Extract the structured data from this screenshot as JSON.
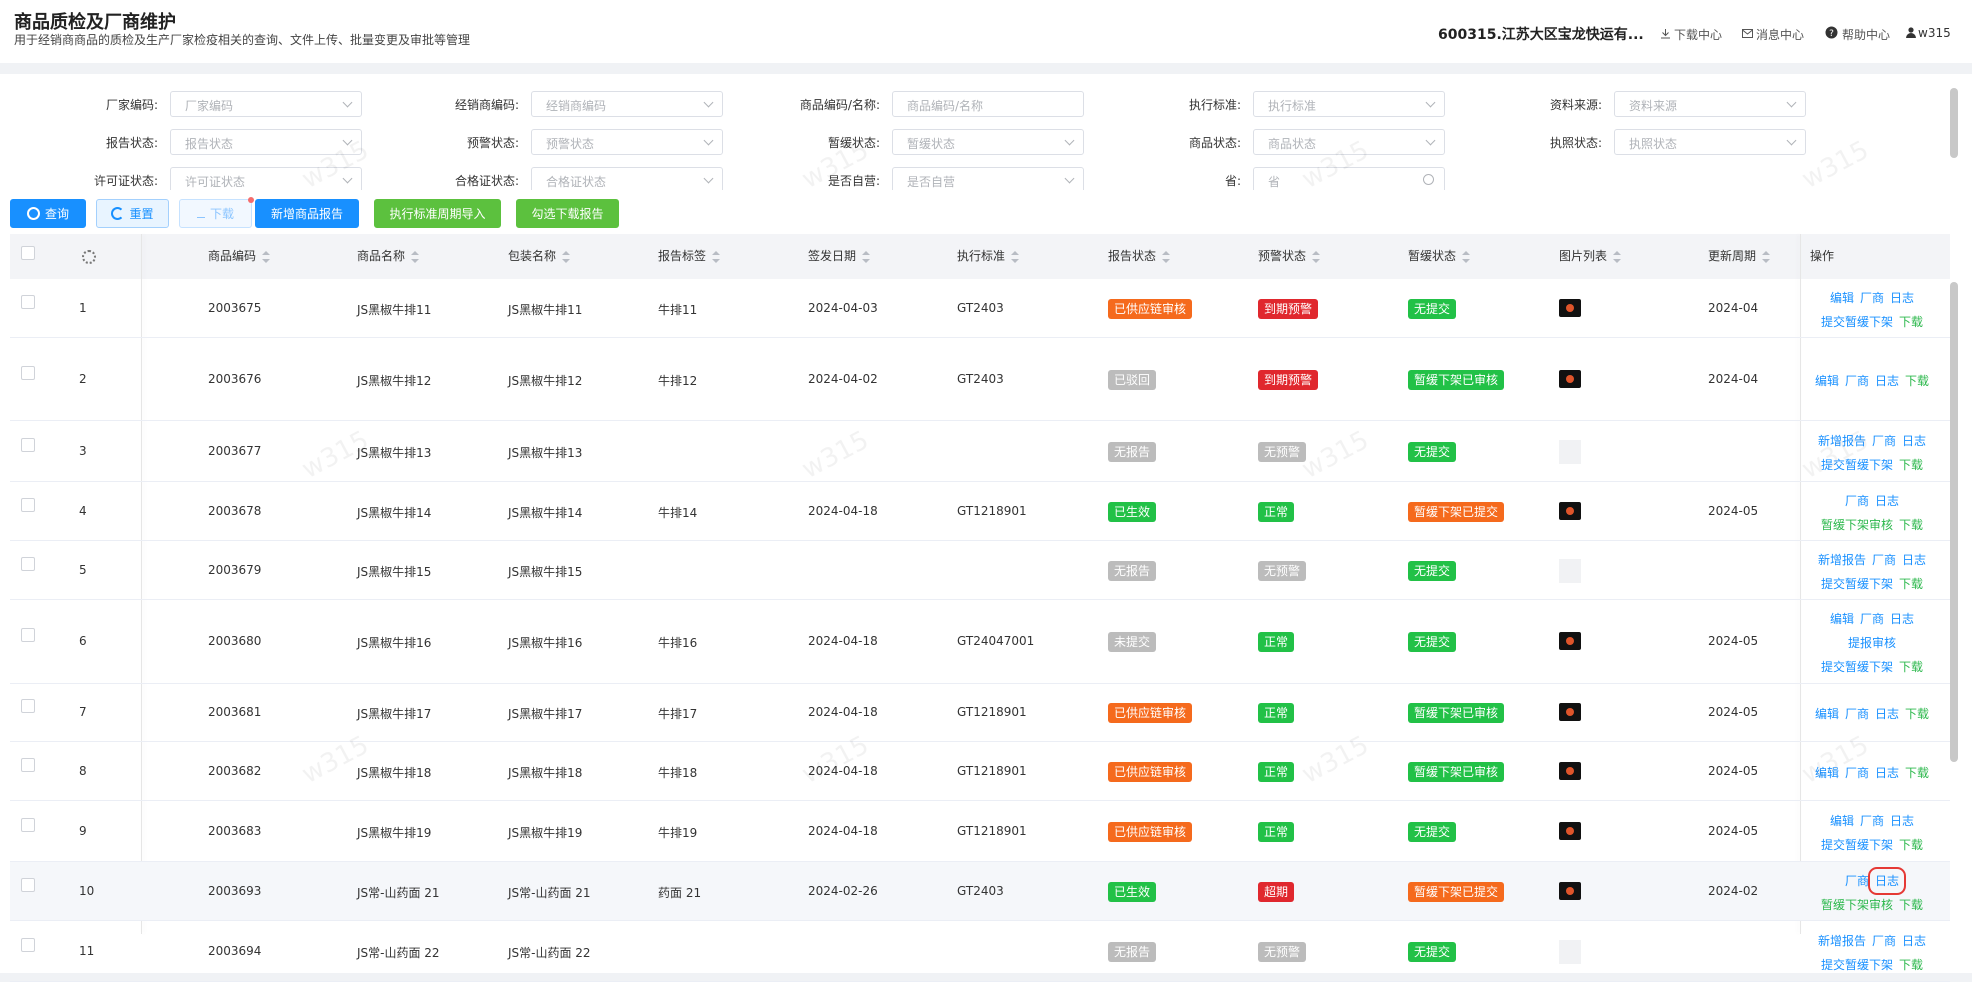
{
  "header": {
    "title": "商品质检及厂商维护",
    "subtitle": "用于经销商商品的质检及生产厂家检疫相关的查询、文件上传、批量变更及审批等管理",
    "company": "600315.江苏大区宝龙快运有...",
    "links": [
      "下载中心",
      "消息中心",
      "帮助中心",
      "w315"
    ]
  },
  "watermark": "w315",
  "filters": [
    [
      {
        "label": "厂家编码:",
        "placeholder": "厂家编码",
        "control": "select"
      },
      {
        "label": "经销商编码:",
        "placeholder": "经销商编码",
        "control": "select"
      },
      {
        "label": "商品编码/名称:",
        "placeholder": "商品编码/名称",
        "control": "input"
      },
      {
        "label": "执行标准:",
        "placeholder": "执行标准",
        "control": "select"
      },
      {
        "label": "资料来源:",
        "placeholder": "资料来源",
        "control": "select"
      }
    ],
    [
      {
        "label": "报告状态:",
        "placeholder": "报告状态",
        "control": "select"
      },
      {
        "label": "预警状态:",
        "placeholder": "预警状态",
        "control": "select"
      },
      {
        "label": "暂缓状态:",
        "placeholder": "暂缓状态",
        "control": "select"
      },
      {
        "label": "商品状态:",
        "placeholder": "商品状态",
        "control": "select"
      },
      {
        "label": "执照状态:",
        "placeholder": "执照状态",
        "control": "select"
      }
    ],
    [
      {
        "label": "许可证状态:",
        "placeholder": "许可证状态",
        "control": "select"
      },
      {
        "label": "合格证状态:",
        "placeholder": "合格证状态",
        "control": "select"
      },
      {
        "label": "是否自营:",
        "placeholder": "是否自营",
        "control": "select"
      },
      {
        "label": "省:",
        "placeholder": "省",
        "control": "search"
      }
    ]
  ],
  "buttons": [
    {
      "text": "查询",
      "style": "primary"
    },
    {
      "text": "重置",
      "style": "plain"
    },
    {
      "text": "下载",
      "style": "light"
    },
    {
      "text": "新增商品报告",
      "style": "primary"
    },
    {
      "text": "执行标准周期导入",
      "style": "success"
    },
    {
      "text": "勾选下载报告",
      "style": "success"
    }
  ],
  "table": {
    "columns": [
      "商品编码",
      "商品名称",
      "包装名称",
      "报告标签",
      "签发日期",
      "执行标准",
      "报告状态",
      "预警状态",
      "暂缓状态",
      "图片列表",
      "更新周期",
      "操作"
    ],
    "rows": [
      {
        "index": 1,
        "code": "2003675",
        "name": "JS黑椒牛排11",
        "package": "JS黑椒牛排11",
        "label": "牛排11",
        "date": "2024-04-03",
        "standard": "GT2403",
        "report": {
          "text": "已供应链审核",
          "color": "#f56a1d"
        },
        "warning": {
          "text": "到期预警",
          "color": "#e0282e"
        },
        "suspend": {
          "text": "无提交",
          "color": "#22c147"
        },
        "has_image": true,
        "cycle": "2024-04",
        "actions": [
          [
            {
              "text": "编辑",
              "color": "#1890ff"
            },
            {
              "text": "厂商",
              "color": "#1890ff"
            },
            {
              "text": "日志",
              "color": "#1890ff"
            }
          ],
          [
            {
              "text": "提交暂缓下架",
              "color": "#1890ff"
            },
            {
              "text": "下载",
              "color": "#2db84d"
            }
          ]
        ]
      },
      {
        "index": 2,
        "code": "2003676",
        "name": "JS黑椒牛排12",
        "package": "JS黑椒牛排12",
        "label": "牛排12",
        "date": "2024-04-02",
        "standard": "GT2403",
        "report": {
          "text": "已驳回",
          "color": "#bcbcbc"
        },
        "warning": {
          "text": "到期预警",
          "color": "#e0282e"
        },
        "suspend": {
          "text": "暂缓下架已审核",
          "color": "#22c147"
        },
        "has_image": true,
        "cycle": "2024-04",
        "actions": [
          [
            {
              "text": "编辑",
              "color": "#1890ff"
            },
            {
              "text": "厂商",
              "color": "#1890ff"
            },
            {
              "text": "日志",
              "color": "#1890ff"
            },
            {
              "text": "下载",
              "color": "#2db84d"
            }
          ]
        ]
      },
      {
        "index": 3,
        "code": "2003677",
        "name": "JS黑椒牛排13",
        "package": "JS黑椒牛排13",
        "label": null,
        "date": null,
        "standard": null,
        "report": {
          "text": "无报告",
          "color": "#bcbcbc"
        },
        "warning": {
          "text": "无预警",
          "color": "#bcbcbc"
        },
        "suspend": {
          "text": "无提交",
          "color": "#22c147"
        },
        "has_image": false,
        "cycle": null,
        "actions": [
          [
            {
              "text": "新增报告",
              "color": "#1890ff"
            },
            {
              "text": "厂商",
              "color": "#1890ff"
            },
            {
              "text": "日志",
              "color": "#1890ff"
            }
          ],
          [
            {
              "text": "提交暂缓下架",
              "color": "#1890ff"
            },
            {
              "text": "下载",
              "color": "#2db84d"
            }
          ]
        ]
      },
      {
        "index": 4,
        "code": "2003678",
        "name": "JS黑椒牛排14",
        "package": "JS黑椒牛排14",
        "label": "牛排14",
        "date": "2024-04-18",
        "standard": "GT1218901",
        "report": {
          "text": "已生效",
          "color": "#22c147"
        },
        "warning": {
          "text": "正常",
          "color": "#22c147"
        },
        "suspend": {
          "text": "暂缓下架已提交",
          "color": "#f56a1d"
        },
        "has_image": true,
        "cycle": "2024-05",
        "actions": [
          [
            {
              "text": "厂商",
              "color": "#1890ff"
            },
            {
              "text": "日志",
              "color": "#1890ff"
            }
          ],
          [
            {
              "text": "暂缓下架审核",
              "color": "#2db84d"
            },
            {
              "text": "下载",
              "color": "#2db84d"
            }
          ]
        ]
      },
      {
        "index": 5,
        "code": "2003679",
        "name": "JS黑椒牛排15",
        "package": "JS黑椒牛排15",
        "label": null,
        "date": null,
        "standard": null,
        "report": {
          "text": "无报告",
          "color": "#bcbcbc"
        },
        "warning": {
          "text": "无预警",
          "color": "#bcbcbc"
        },
        "suspend": {
          "text": "无提交",
          "color": "#22c147"
        },
        "has_image": false,
        "cycle": null,
        "actions": [
          [
            {
              "text": "新增报告",
              "color": "#1890ff"
            },
            {
              "text": "厂商",
              "color": "#1890ff"
            },
            {
              "text": "日志",
              "color": "#1890ff"
            }
          ],
          [
            {
              "text": "提交暂缓下架",
              "color": "#1890ff"
            },
            {
              "text": "下载",
              "color": "#2db84d"
            }
          ]
        ]
      },
      {
        "index": 6,
        "code": "2003680",
        "name": "JS黑椒牛排16",
        "package": "JS黑椒牛排16",
        "label": "牛排16",
        "date": "2024-04-18",
        "standard": "GT24047001",
        "report": {
          "text": "未提交",
          "color": "#bcbcbc"
        },
        "warning": {
          "text": "正常",
          "color": "#22c147"
        },
        "suspend": {
          "text": "无提交",
          "color": "#22c147"
        },
        "has_image": true,
        "cycle": "2024-05",
        "actions": [
          [
            {
              "text": "编辑",
              "color": "#1890ff"
            },
            {
              "text": "厂商",
              "color": "#1890ff"
            },
            {
              "text": "日志",
              "color": "#1890ff"
            }
          ],
          [
            {
              "text": "提报审核",
              "color": "#1890ff"
            }
          ],
          [
            {
              "text": "提交暂缓下架",
              "color": "#1890ff"
            },
            {
              "text": "下载",
              "color": "#2db84d"
            }
          ]
        ]
      },
      {
        "index": 7,
        "code": "2003681",
        "name": "JS黑椒牛排17",
        "package": "JS黑椒牛排17",
        "label": "牛排17",
        "date": "2024-04-18",
        "standard": "GT1218901",
        "report": {
          "text": "已供应链审核",
          "color": "#f56a1d"
        },
        "warning": {
          "text": "正常",
          "color": "#22c147"
        },
        "suspend": {
          "text": "暂缓下架已审核",
          "color": "#22c147"
        },
        "has_image": true,
        "cycle": "2024-05",
        "actions": [
          [
            {
              "text": "编辑",
              "color": "#1890ff"
            },
            {
              "text": "厂商",
              "color": "#1890ff"
            },
            {
              "text": "日志",
              "color": "#1890ff"
            },
            {
              "text": "下载",
              "color": "#2db84d"
            }
          ]
        ]
      },
      {
        "index": 8,
        "code": "2003682",
        "name": "JS黑椒牛排18",
        "package": "JS黑椒牛排18",
        "label": "牛排18",
        "date": "2024-04-18",
        "standard": "GT1218901",
        "report": {
          "text": "已供应链审核",
          "color": "#f56a1d"
        },
        "warning": {
          "text": "正常",
          "color": "#22c147"
        },
        "suspend": {
          "text": "暂缓下架已审核",
          "color": "#22c147"
        },
        "has_image": true,
        "cycle": "2024-05",
        "actions": [
          [
            {
              "text": "编辑",
              "color": "#1890ff"
            },
            {
              "text": "厂商",
              "color": "#1890ff"
            },
            {
              "text": "日志",
              "color": "#1890ff"
            },
            {
              "text": "下载",
              "color": "#2db84d"
            }
          ]
        ]
      },
      {
        "index": 9,
        "code": "2003683",
        "name": "JS黑椒牛排19",
        "package": "JS黑椒牛排19",
        "label": "牛排19",
        "date": "2024-04-18",
        "standard": "GT1218901",
        "report": {
          "text": "已供应链审核",
          "color": "#f56a1d"
        },
        "warning": {
          "text": "正常",
          "color": "#22c147"
        },
        "suspend": {
          "text": "无提交",
          "color": "#22c147"
        },
        "has_image": true,
        "cycle": "2024-05",
        "actions": [
          [
            {
              "text": "编辑",
              "color": "#1890ff"
            },
            {
              "text": "厂商",
              "color": "#1890ff"
            },
            {
              "text": "日志",
              "color": "#1890ff"
            }
          ],
          [
            {
              "text": "提交暂缓下架",
              "color": "#1890ff"
            },
            {
              "text": "下载",
              "color": "#2db84d"
            }
          ]
        ]
      },
      {
        "index": 10,
        "code": "2003693",
        "name": "JS常-山药面 21",
        "package": "JS常-山药面 21",
        "label": "药面 21",
        "date": "2024-02-26",
        "standard": "GT2403",
        "report": {
          "text": "已生效",
          "color": "#22c147"
        },
        "warning": {
          "text": "超期",
          "color": "#e0282e"
        },
        "suspend": {
          "text": "暂缓下架已提交",
          "color": "#f56a1d"
        },
        "has_image": true,
        "cycle": "2024-02",
        "hover": true,
        "actions": [
          [
            {
              "text": "厂商",
              "color": "#1890ff"
            },
            {
              "text": "日志",
              "color": "#1890ff",
              "highlight": true
            }
          ],
          [
            {
              "text": "暂缓下架审核",
              "color": "#2db84d"
            },
            {
              "text": "下载",
              "color": "#2db84d"
            }
          ]
        ]
      },
      {
        "index": 11,
        "code": "2003694",
        "name": "JS常-山药面 22",
        "package": "JS常-山药面 22",
        "label": null,
        "date": null,
        "standard": null,
        "report": {
          "text": "无报告",
          "color": "#bcbcbc"
        },
        "warning": {
          "text": "无预警",
          "color": "#bcbcbc"
        },
        "suspend": {
          "text": "无提交",
          "color": "#22c147"
        },
        "has_image": false,
        "cycle": null,
        "actions": [
          [
            {
              "text": "新增报告",
              "color": "#1890ff"
            },
            {
              "text": "厂商",
              "color": "#1890ff"
            },
            {
              "text": "日志",
              "color": "#1890ff"
            }
          ],
          [
            {
              "text": "提交暂缓下架",
              "color": "#1890ff"
            },
            {
              "text": "下载",
              "color": "#2db84d"
            }
          ]
        ]
      }
    ]
  }
}
